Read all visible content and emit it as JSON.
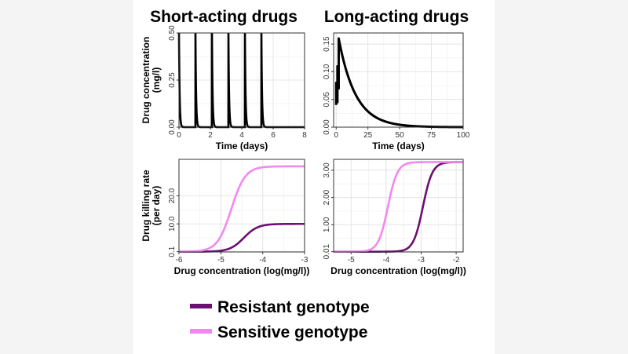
{
  "page": {
    "left_title": "Short-acting drugs",
    "right_title": "Long-acting drugs"
  },
  "colors": {
    "resistant": "#6b0f72",
    "sensitive": "#f287f2",
    "line": "#000000",
    "side_panel": "#f4f4f4"
  },
  "legend": {
    "items": [
      {
        "label": "Resistant genotype",
        "color": "#6b0f72"
      },
      {
        "label": "Sensitive genotype",
        "color": "#f287f2"
      }
    ]
  },
  "chart_data": [
    {
      "id": "short_concentration",
      "type": "line",
      "xlabel": "Time (days)",
      "ylabel": "Drug concentration (mg/l)",
      "xlim": [
        0,
        8
      ],
      "ylim": [
        0,
        0.5
      ],
      "xticks": [
        "0",
        "2",
        "4",
        "6",
        "8"
      ],
      "yticks": [
        "0.00",
        "0.25",
        "0.50"
      ],
      "x_tick_values": [
        0,
        2,
        4,
        6,
        8
      ],
      "y_tick_values": [
        0,
        0.25,
        0.5
      ],
      "grid": true,
      "series": [
        {
          "dose_times": [
            0,
            1.05,
            2.1,
            3.15,
            4.2,
            5.25
          ],
          "peak": 0.5,
          "trough": 0.0,
          "decay_rate_per_day": 25
        }
      ]
    },
    {
      "id": "long_concentration",
      "type": "line",
      "xlabel": "Time (days)",
      "ylabel": "",
      "xlim": [
        -2,
        100
      ],
      "ylim": [
        0,
        0.17
      ],
      "xticks": [
        "0",
        "25",
        "50",
        "75",
        "100"
      ],
      "yticks": [
        "0.00",
        "0.05",
        "0.10",
        "0.15"
      ],
      "x_tick_values": [
        0,
        25,
        50,
        75,
        100
      ],
      "y_tick_values": [
        0,
        0.05,
        0.1,
        0.15
      ],
      "grid": true,
      "series": [
        {
          "early_points": [
            [
              0,
              0.04
            ],
            [
              0,
              0.08
            ],
            [
              1,
              0.045
            ],
            [
              1,
              0.11
            ],
            [
              2,
              0.07
            ],
            [
              2,
              0.16
            ]
          ],
          "peak_day": 2,
          "peak": 0.16,
          "decay_rate_per_day": 0.075
        }
      ]
    },
    {
      "id": "short_killing",
      "type": "line",
      "xlabel": "Drug concentration (log(mg/l))",
      "ylabel": "Drug killing rate (per day)",
      "xlim": [
        -6,
        -3
      ],
      "ylim": [
        0,
        33
      ],
      "xticks": [
        "-6",
        "-5",
        "-4",
        "-3"
      ],
      "yticks": [
        "0.1",
        "10.0",
        "20.0"
      ],
      "x_tick_values": [
        -6,
        -5,
        -4,
        -3
      ],
      "y_tick_values": [
        0.1,
        10,
        20
      ],
      "grid": true,
      "series": [
        {
          "name": "Resistant genotype",
          "color": "#6b0f72",
          "bottom": 0.1,
          "max": 10.0,
          "ec50": -4.45,
          "slope": 2.6
        },
        {
          "name": "Sensitive genotype",
          "color": "#f287f2",
          "bottom": 0.1,
          "max": 30.5,
          "ec50": -4.75,
          "slope": 2.6
        }
      ]
    },
    {
      "id": "long_killing",
      "type": "line",
      "xlabel": "Drug concentration (log(mg/l))",
      "ylabel": "",
      "xlim": [
        -5.5,
        -1.8
      ],
      "ylim": [
        0,
        3.4
      ],
      "xticks": [
        "-5",
        "-4",
        "-3",
        "-2"
      ],
      "yticks": [
        "0.01",
        "1.00",
        "2.00",
        "3.00"
      ],
      "x_tick_values": [
        -5,
        -4,
        -3,
        -2
      ],
      "y_tick_values": [
        0.01,
        1,
        2,
        3
      ],
      "grid": true,
      "series": [
        {
          "name": "Resistant genotype",
          "color": "#6b0f72",
          "bottom": 0.01,
          "max": 3.3,
          "ec50": -2.95,
          "slope": 3.2
        },
        {
          "name": "Sensitive genotype",
          "color": "#f287f2",
          "bottom": 0.01,
          "max": 3.3,
          "ec50": -3.95,
          "slope": 3.2
        }
      ]
    }
  ]
}
